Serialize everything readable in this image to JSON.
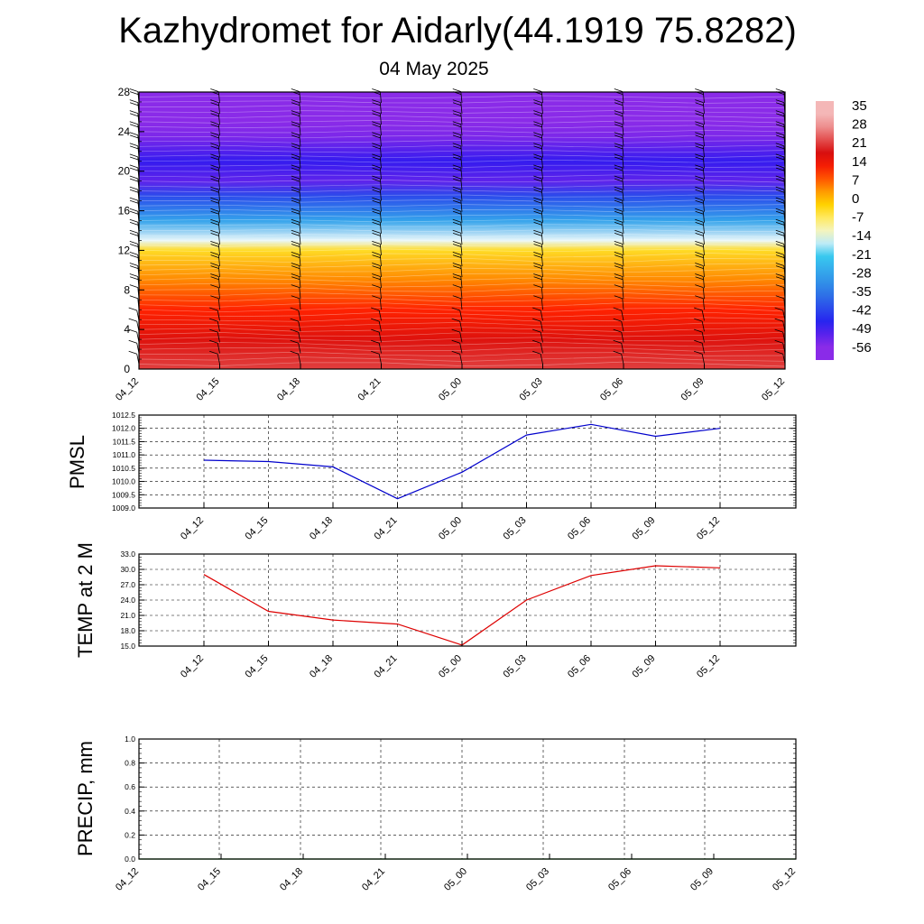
{
  "title": "Kazhydromet for Aidarly(44.1919 75.8282)",
  "subtitle": "04 May 2025",
  "chart_data": [
    {
      "type": "heatmap",
      "name": "cross-section",
      "x_tick_labels": [
        "04_12",
        "04_15",
        "04_18",
        "04_21",
        "05_00",
        "05_03",
        "05_06",
        "05_09",
        "05_12"
      ],
      "y_tick_labels": [
        "0",
        "4",
        "8",
        "12",
        "16",
        "20",
        "24",
        "28"
      ],
      "ylim": [
        0,
        28
      ],
      "colorbar_labels": [
        "35",
        "28",
        "21",
        "14",
        "7",
        "0",
        "-7",
        "-14",
        "-21",
        "-28",
        "-35",
        "-42",
        "-49",
        "-56"
      ],
      "color_levels": [
        {
          "level": 35,
          "color": "#f4b7b7"
        },
        {
          "level": 21,
          "color": "#d80f0f"
        },
        {
          "level": 14,
          "color": "#ff2200"
        },
        {
          "level": 7,
          "color": "#ff8800"
        },
        {
          "level": 0,
          "color": "#ffd200"
        },
        {
          "level": -7,
          "color": "#fff080"
        },
        {
          "level": -14,
          "color": "#e9f7fa"
        },
        {
          "level": -21,
          "color": "#38c8ef"
        },
        {
          "level": -35,
          "color": "#2f7de6"
        },
        {
          "level": -49,
          "color": "#2618f0"
        },
        {
          "level": -56,
          "color": "#8a2be8"
        }
      ],
      "temperature_profile": [
        {
          "height": 0,
          "value": 25
        },
        {
          "height": 3,
          "value": 20
        },
        {
          "height": 6,
          "value": 14
        },
        {
          "height": 9,
          "value": 7
        },
        {
          "height": 12,
          "value": -2
        },
        {
          "height": 13,
          "value": -14
        },
        {
          "height": 15,
          "value": -28
        },
        {
          "height": 17.5,
          "value": -42
        },
        {
          "height": 19,
          "value": -53
        },
        {
          "height": 21,
          "value": -50
        },
        {
          "height": 23.5,
          "value": -55
        },
        {
          "height": 25,
          "value": -60
        },
        {
          "height": 28,
          "value": -60
        }
      ],
      "grid": false
    },
    {
      "type": "line",
      "name": "PMSL",
      "ylabel": "PMSL",
      "categories": [
        "04_12",
        "04_15",
        "04_18",
        "04_21",
        "05_00",
        "05_03",
        "05_06",
        "05_09",
        "05_12"
      ],
      "series": [
        {
          "values": [
            1010.8,
            1010.75,
            1010.55,
            1009.35,
            1010.35,
            1011.75,
            1012.15,
            1011.7,
            1012.0
          ],
          "color": "#0000cc"
        }
      ],
      "ylim": [
        1009.0,
        1012.5
      ],
      "y_tick_labels": [
        "1009.0",
        "1009.5",
        "1010.0",
        "1010.5",
        "1011.0",
        "1011.5",
        "1012.0",
        "1012.5"
      ],
      "grid": true
    },
    {
      "type": "line",
      "name": "TEMP",
      "ylabel": "TEMP at 2 M",
      "categories": [
        "04_12",
        "04_15",
        "04_18",
        "04_21",
        "05_00",
        "05_03",
        "05_06",
        "05_09",
        "05_12"
      ],
      "series": [
        {
          "values": [
            29.0,
            21.8,
            20.1,
            19.3,
            15.2,
            24.0,
            28.8,
            30.7,
            30.3
          ],
          "color": "#dd0000"
        }
      ],
      "ylim": [
        15.0,
        33.0
      ],
      "y_tick_labels": [
        "15.0",
        "18.0",
        "21.0",
        "24.0",
        "27.0",
        "30.0",
        "33.0"
      ],
      "grid": true
    },
    {
      "type": "line",
      "name": "PRECIP",
      "ylabel": "PRECIP, mm",
      "x_tick_labels": [
        "04_12",
        "04_15",
        "04_18",
        "04_21",
        "05_00",
        "05_03",
        "05_06",
        "05_09",
        "05_12"
      ],
      "series": [
        {
          "values": [
            0,
            0,
            0,
            0,
            0,
            0,
            0,
            0,
            0
          ],
          "color": "#008800"
        }
      ],
      "ylim": [
        0.0,
        1.0
      ],
      "y_tick_labels": [
        "0.0",
        "0.2",
        "0.4",
        "0.6",
        "0.8",
        "1.0"
      ],
      "grid": true
    }
  ]
}
